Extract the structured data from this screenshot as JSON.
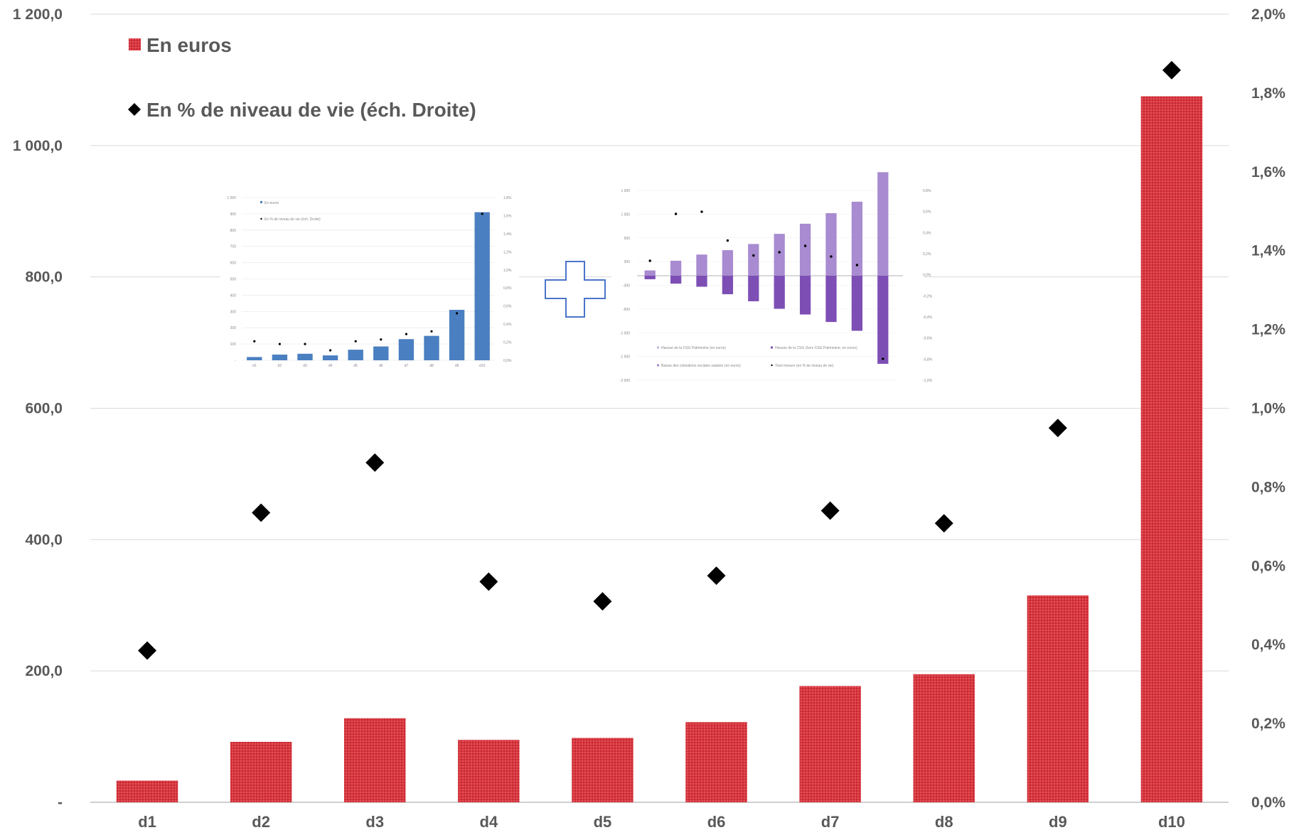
{
  "chart_data": {
    "type": "bar",
    "categories": [
      "d1",
      "d2",
      "d3",
      "d4",
      "d5",
      "d6",
      "d7",
      "d8",
      "d9",
      "d10"
    ],
    "series": [
      {
        "name": "En euros",
        "type": "bar",
        "axis": "left",
        "values": [
          33,
          92,
          128,
          95,
          98,
          122,
          177,
          195,
          315,
          1075
        ],
        "color": "#d9363e"
      },
      {
        "name": "En % de niveau de vie (éch. Droite)",
        "type": "scatter",
        "axis": "right",
        "values": [
          0.385,
          0.735,
          0.862,
          0.56,
          0.51,
          0.575,
          0.74,
          0.708,
          0.95,
          1.858
        ],
        "color": "#000000"
      }
    ],
    "y_left": {
      "ylim": [
        0,
        1200
      ],
      "ticks": [
        0,
        200,
        400,
        600,
        800,
        1000,
        1200
      ],
      "tick_labels": [
        "-",
        "200,0",
        "400,0",
        "600,0",
        "800,0",
        "1 000,0",
        "1 200,0"
      ]
    },
    "y_right": {
      "ylim": [
        0,
        2.0
      ],
      "ticks": [
        0,
        0.2,
        0.4,
        0.6,
        0.8,
        1.0,
        1.2,
        1.4,
        1.6,
        1.8,
        2.0
      ],
      "tick_labels": [
        "0,0%",
        "0,2%",
        "0,4%",
        "0,6%",
        "0,8%",
        "1,0%",
        "1,2%",
        "1,4%",
        "1,6%",
        "1,8%",
        "2,0%"
      ]
    },
    "grid": true,
    "legend_position": "top-left",
    "title": "",
    "xlabel": "",
    "ylabel": ""
  },
  "inset_left": {
    "type": "bar",
    "y_left_ticks": [
      "1 000",
      "900",
      "800",
      "700",
      "600",
      "500",
      "400",
      "300",
      "200",
      "100",
      "-"
    ],
    "y_right_ticks": [
      "1,8%",
      "1,6%",
      "1,4%",
      "1,2%",
      "1,0%",
      "0,8%",
      "0,6%",
      "0,4%",
      "0,2%",
      "0,0%"
    ],
    "legend": [
      "En euros",
      "En % de niveau de vie (éch. Droite)"
    ],
    "categories": [
      "d1",
      "d2",
      "d3",
      "d4",
      "d5",
      "d6",
      "d7",
      "d8",
      "d9",
      "d10"
    ],
    "values": [
      20,
      35,
      40,
      30,
      65,
      85,
      130,
      150,
      310,
      910
    ],
    "markers": [
      0.21,
      0.18,
      0.18,
      0.11,
      0.21,
      0.23,
      0.29,
      0.32,
      0.52,
      1.62
    ],
    "color": "#4a7fc1"
  },
  "inset_right": {
    "type": "bar",
    "y_left_ticks": [
      "1 000",
      "1 000",
      "500",
      "300",
      "-300",
      "-500",
      "-1 000",
      "-1 500",
      "-2 000"
    ],
    "y_right_ticks": [
      "0,8%",
      "0,6%",
      "0,4%",
      "0,2%",
      "0,0%",
      "-0,2%",
      "-0,4%",
      "-0,6%",
      "-0,8%",
      "-1,0%"
    ],
    "legend": [
      "Hausse de la CSG Patrimoine (en euros)",
      "Hausse de la CSG (hors CSG Patrimoine, en euros)",
      "Baisse des cotisations sociales salariés (en euros)",
      "Total mesure (en % de niveau de vie)"
    ],
    "pos_values": [
      0.12,
      0.34,
      0.48,
      0.58,
      0.72,
      0.95,
      1.18,
      1.42,
      1.68,
      2.35
    ],
    "neg_values": [
      0.08,
      0.18,
      0.25,
      0.42,
      0.58,
      0.75,
      0.88,
      1.05,
      1.25,
      2.0
    ],
    "markers": [
      0.14,
      0.58,
      0.6,
      0.33,
      0.19,
      0.22,
      0.28,
      0.18,
      0.1,
      -0.78
    ],
    "light_color": "#a88bd0",
    "dark_color": "#7d4fb5"
  },
  "plus_sign": {
    "color": "#4a74c9"
  }
}
